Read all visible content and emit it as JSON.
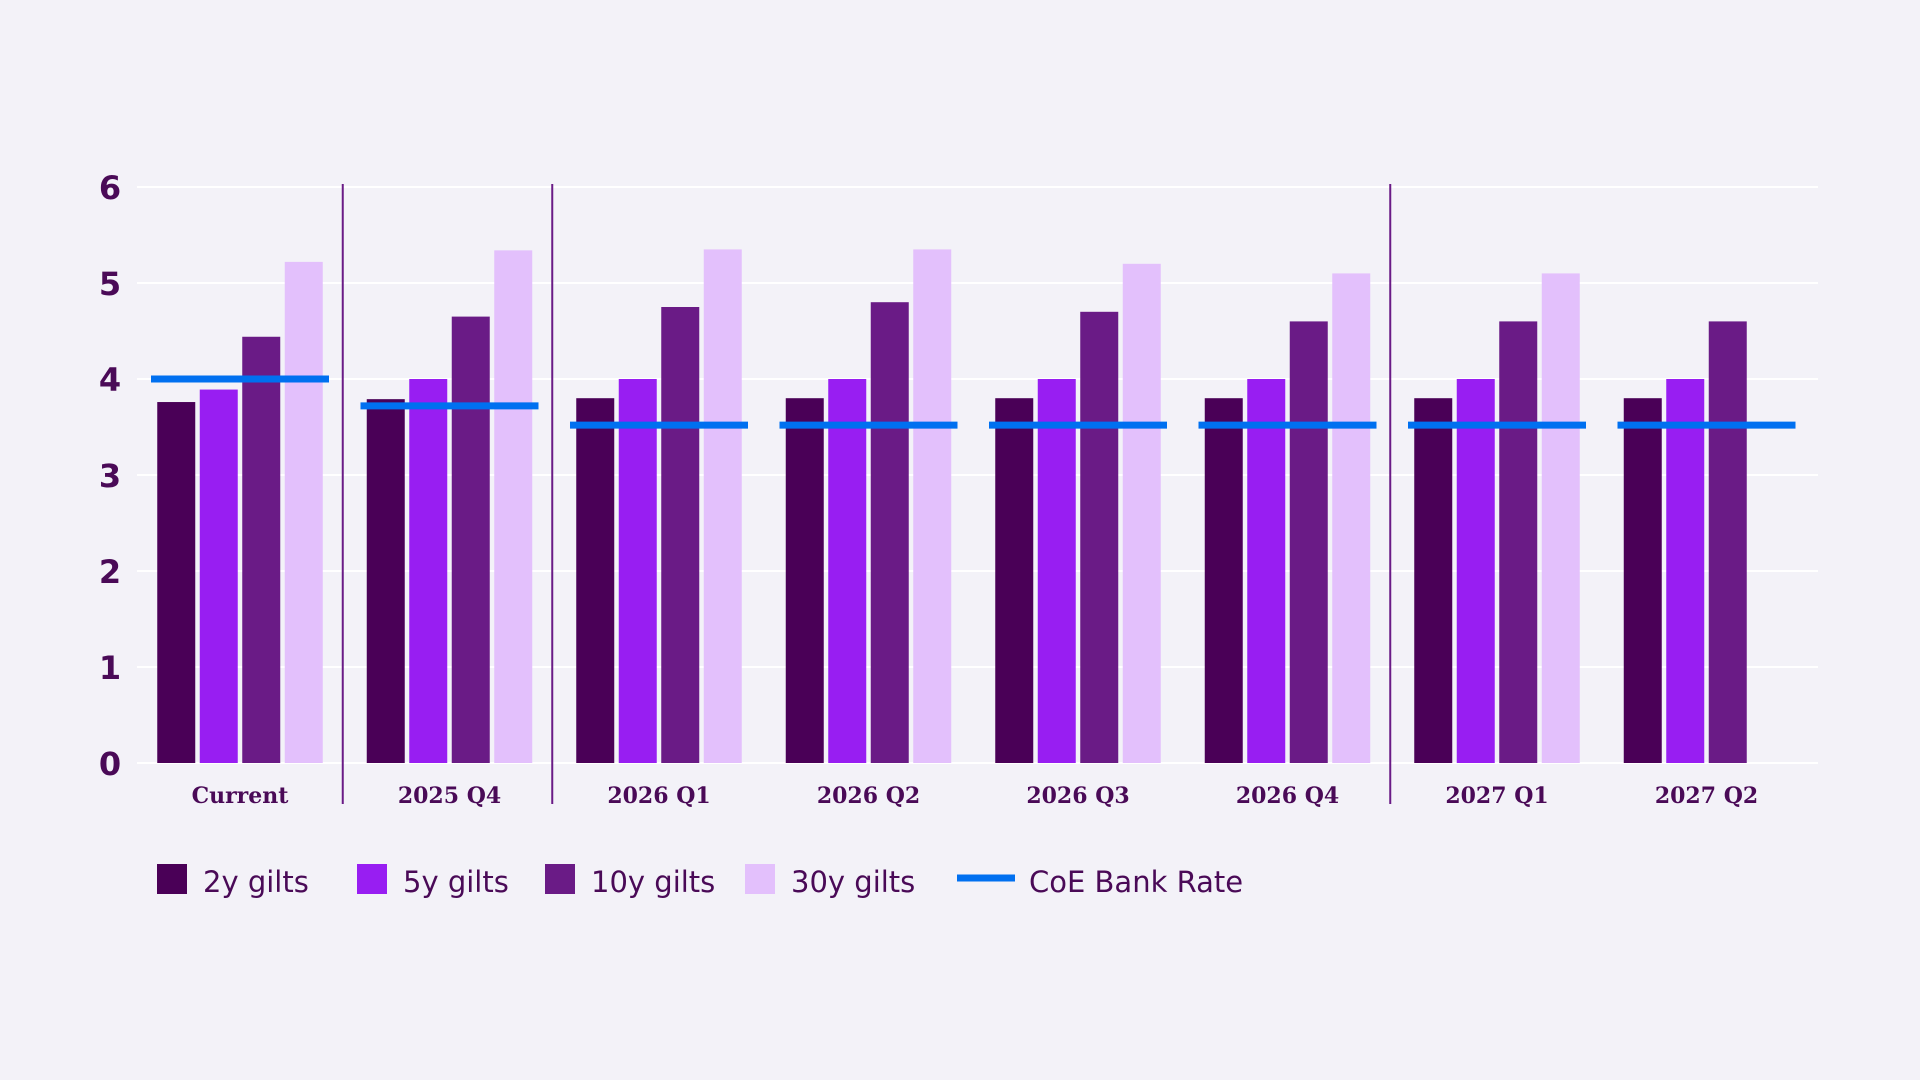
{
  "chart_data": {
    "type": "bar",
    "title": "",
    "xlabel": "",
    "ylabel": "",
    "ylim": [
      0,
      6
    ],
    "yticks": [
      0,
      1,
      2,
      3,
      4,
      5,
      6
    ],
    "grid": true,
    "legend_placement": "bottom-left",
    "categories": [
      "Current",
      "2025 Q4",
      "2026 Q1",
      "2026 Q2",
      "2026 Q3",
      "2026 Q4",
      "2027 Q1",
      "2027 Q2"
    ],
    "dividers_after": [
      "Current",
      "2025 Q4",
      "2026 Q4"
    ],
    "series": [
      {
        "name": "2y gilts",
        "color": "#4a0057",
        "values": [
          3.76,
          3.79,
          3.8,
          3.8,
          3.8,
          3.8,
          3.8,
          3.8
        ]
      },
      {
        "name": "5y gilts",
        "color": "#981ef2",
        "values": [
          3.89,
          4.0,
          4.0,
          4.0,
          4.0,
          4.0,
          4.0,
          4.0
        ]
      },
      {
        "name": "10y gilts",
        "color": "#6a1b86",
        "values": [
          4.44,
          4.65,
          4.75,
          4.8,
          4.7,
          4.6,
          4.6,
          4.6
        ]
      },
      {
        "name": "30y gilts",
        "color": "#e3c0fc",
        "values": [
          5.22,
          5.34,
          5.35,
          5.35,
          5.2,
          5.1,
          5.1,
          null
        ]
      }
    ],
    "line_series": {
      "name": "CoE Bank Rate",
      "color": "#0070f0",
      "values": [
        4.0,
        3.72,
        3.52,
        3.52,
        3.52,
        3.52,
        3.52,
        3.52
      ]
    }
  }
}
